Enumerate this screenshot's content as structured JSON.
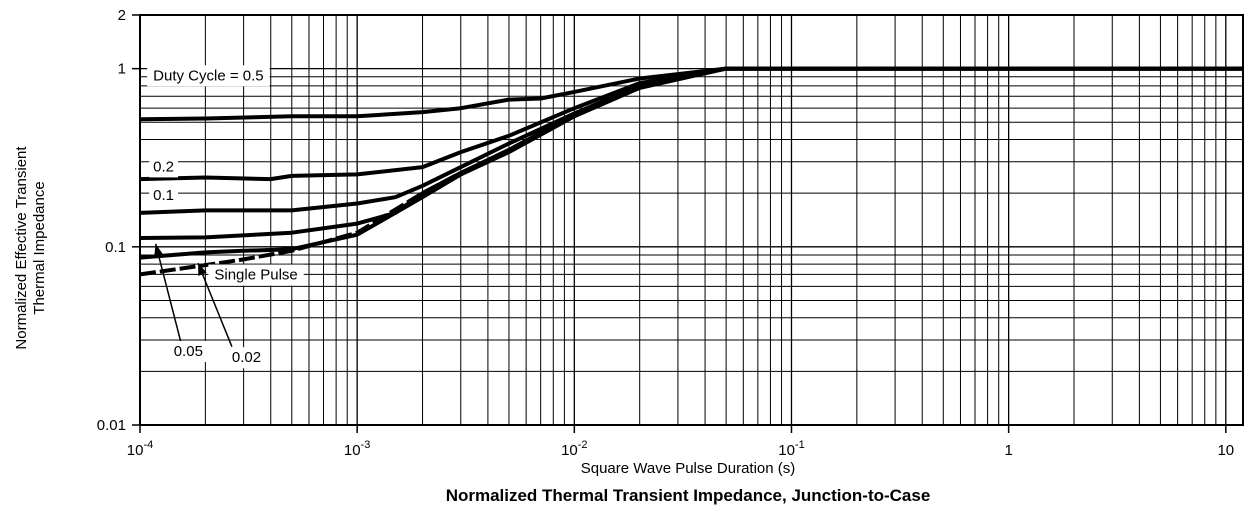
{
  "chart_data": {
    "type": "line",
    "title": "Normalized Thermal Transient Impedance, Junction-to-Case",
    "xlabel": "Square Wave Pulse Duration (s)",
    "ylabel_lines": [
      "Normalized Effective Transient",
      "Thermal Impedance"
    ],
    "x_scale": "log",
    "y_scale": "log",
    "xlim": [
      0.0001,
      12
    ],
    "ylim": [
      0.01,
      2
    ],
    "grid": true,
    "x_ticks": [
      {
        "value": 0.0001,
        "base": "10",
        "exp": "-4"
      },
      {
        "value": 0.001,
        "base": "10",
        "exp": "-3"
      },
      {
        "value": 0.01,
        "base": "10",
        "exp": "-2"
      },
      {
        "value": 0.1,
        "base": "10",
        "exp": "-1"
      },
      {
        "value": 1,
        "label": "1"
      },
      {
        "value": 10,
        "label": "10"
      }
    ],
    "y_ticks": [
      {
        "value": 2,
        "label": "2"
      },
      {
        "value": 1,
        "label": "1"
      },
      {
        "value": 0.1,
        "label": "0.1"
      },
      {
        "value": 0.01,
        "label": "0.01"
      }
    ],
    "series": [
      {
        "name": "Duty Cycle = 0.5",
        "x": [
          0.0001,
          0.0002,
          0.0005,
          0.001,
          0.002,
          0.003,
          0.005,
          0.007,
          0.01,
          0.02,
          0.05,
          12
        ],
        "y": [
          0.52,
          0.525,
          0.54,
          0.54,
          0.57,
          0.6,
          0.67,
          0.68,
          0.74,
          0.88,
          1.0,
          1.0
        ]
      },
      {
        "name": "0.2",
        "x": [
          0.0001,
          0.0002,
          0.0004,
          0.0005,
          0.001,
          0.002,
          0.003,
          0.005,
          0.01,
          0.02,
          0.05,
          12
        ],
        "y": [
          0.24,
          0.245,
          0.24,
          0.25,
          0.255,
          0.28,
          0.34,
          0.42,
          0.6,
          0.83,
          1.0,
          1.0
        ]
      },
      {
        "name": "0.1",
        "x": [
          0.0001,
          0.0002,
          0.0005,
          0.001,
          0.0015,
          0.002,
          0.003,
          0.005,
          0.01,
          0.02,
          0.05,
          12
        ],
        "y": [
          0.155,
          0.16,
          0.16,
          0.175,
          0.19,
          0.22,
          0.28,
          0.38,
          0.56,
          0.8,
          1.0,
          1.0
        ]
      },
      {
        "name": "0.05",
        "x": [
          0.0001,
          0.0002,
          0.0005,
          0.001,
          0.0015,
          0.002,
          0.003,
          0.005,
          0.01,
          0.02,
          0.05,
          12
        ],
        "y": [
          0.112,
          0.113,
          0.12,
          0.135,
          0.155,
          0.2,
          0.26,
          0.35,
          0.55,
          0.79,
          1.0,
          1.0
        ]
      },
      {
        "name": "0.02",
        "x": [
          0.0001,
          0.0002,
          0.0003,
          0.0005,
          0.001,
          0.002,
          0.003,
          0.005,
          0.01,
          0.02,
          0.05,
          12
        ],
        "y": [
          0.087,
          0.093,
          0.095,
          0.097,
          0.117,
          0.19,
          0.255,
          0.34,
          0.54,
          0.78,
          1.0,
          1.0
        ]
      },
      {
        "name": "Single Pulse",
        "x": [
          0.0001,
          0.0002,
          0.0003,
          0.0005,
          0.001,
          0.002,
          0.003,
          0.005,
          0.01,
          0.02,
          0.05,
          12
        ],
        "y": [
          0.07,
          0.079,
          0.085,
          0.095,
          0.12,
          0.2,
          0.26,
          0.35,
          0.55,
          0.79,
          1.0,
          1.0
        ]
      }
    ],
    "annotations": [
      {
        "text": "Duty Cycle = 0.5",
        "series": "Duty Cycle = 0.5"
      },
      {
        "text": "0.2",
        "series": "0.2"
      },
      {
        "text": "0.1",
        "series": "0.1"
      },
      {
        "text": "0.05",
        "series": "0.05"
      },
      {
        "text": "0.02",
        "series": "0.02"
      },
      {
        "text": "Single Pulse",
        "series": "Single Pulse"
      }
    ],
    "line_color": "#000000",
    "grid_color": "#000000"
  }
}
